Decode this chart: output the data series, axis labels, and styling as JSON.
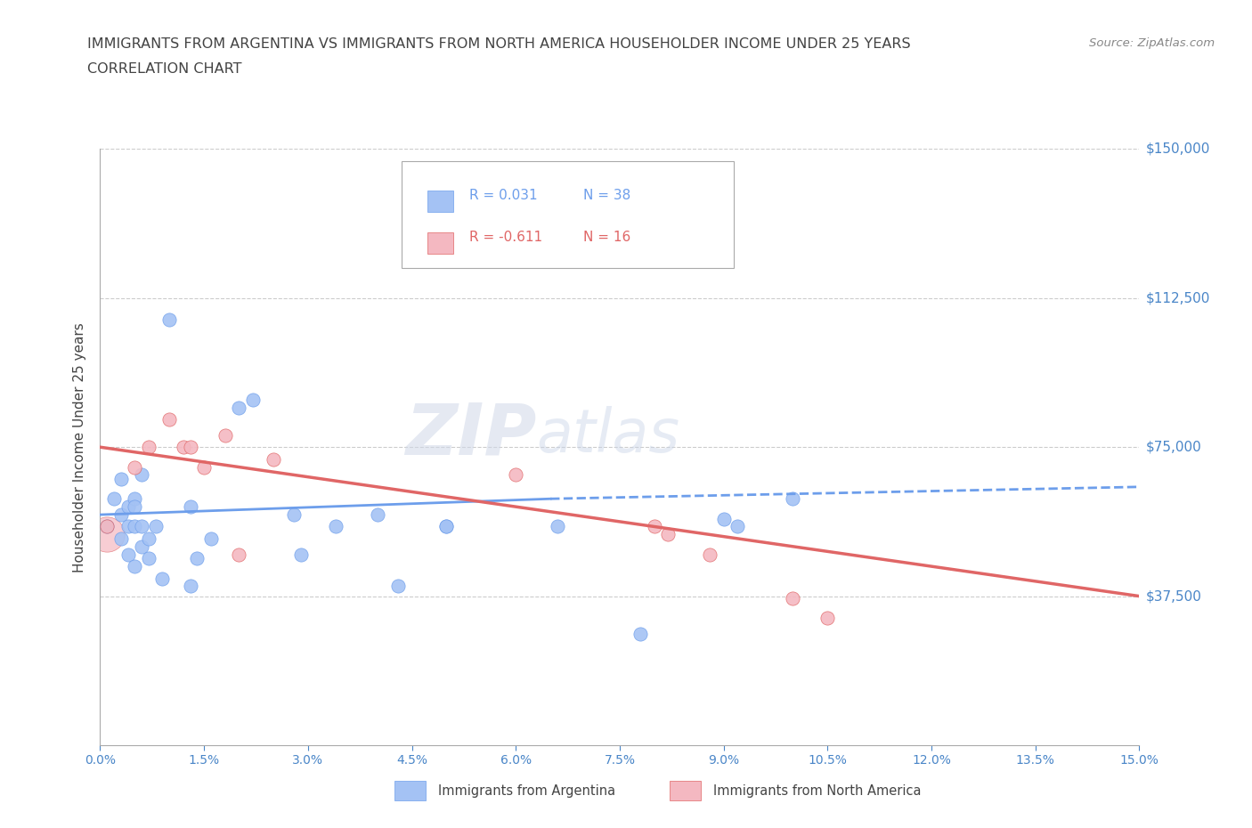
{
  "title_line1": "IMMIGRANTS FROM ARGENTINA VS IMMIGRANTS FROM NORTH AMERICA HOUSEHOLDER INCOME UNDER 25 YEARS",
  "title_line2": "CORRELATION CHART",
  "source_text": "Source: ZipAtlas.com",
  "ylabel": "Householder Income Under 25 years",
  "xlim": [
    0,
    0.15
  ],
  "ylim": [
    0,
    150000
  ],
  "yticks": [
    0,
    37500,
    75000,
    112500,
    150000
  ],
  "ytick_labels": [
    "",
    "$37,500",
    "$75,000",
    "$112,500",
    "$150,000"
  ],
  "watermark_zip": "ZIP",
  "watermark_atlas": "atlas",
  "legend_r1": "R = 0.031",
  "legend_n1": "N = 38",
  "legend_r2": "R = -0.611",
  "legend_n2": "N = 16",
  "color_argentina": "#a4c2f4",
  "color_north_america": "#f4b8c1",
  "color_argentina_dark": "#6d9eeb",
  "color_north_america_dark": "#e06666",
  "color_axis_labels": "#4a86c8",
  "color_title": "#434343",
  "argentina_x": [
    0.001,
    0.002,
    0.003,
    0.003,
    0.003,
    0.004,
    0.004,
    0.004,
    0.005,
    0.005,
    0.005,
    0.005,
    0.006,
    0.006,
    0.006,
    0.007,
    0.007,
    0.008,
    0.009,
    0.01,
    0.013,
    0.013,
    0.014,
    0.016,
    0.02,
    0.022,
    0.028,
    0.029,
    0.034,
    0.04,
    0.043,
    0.05,
    0.05,
    0.066,
    0.078,
    0.09,
    0.092,
    0.1
  ],
  "argentina_y": [
    55000,
    62000,
    67000,
    58000,
    52000,
    55000,
    60000,
    48000,
    55000,
    62000,
    45000,
    60000,
    55000,
    50000,
    68000,
    52000,
    47000,
    55000,
    42000,
    107000,
    60000,
    40000,
    47000,
    52000,
    85000,
    87000,
    58000,
    48000,
    55000,
    58000,
    40000,
    55000,
    55000,
    55000,
    28000,
    57000,
    55000,
    62000
  ],
  "north_america_x": [
    0.001,
    0.005,
    0.007,
    0.01,
    0.012,
    0.013,
    0.015,
    0.018,
    0.02,
    0.025,
    0.06,
    0.08,
    0.082,
    0.088,
    0.1,
    0.105
  ],
  "north_america_y": [
    55000,
    70000,
    75000,
    82000,
    75000,
    75000,
    70000,
    78000,
    48000,
    72000,
    68000,
    55000,
    53000,
    48000,
    37000,
    32000
  ],
  "argentina_trend_x": [
    0.0,
    0.065,
    0.065,
    0.15
  ],
  "argentina_trend_y": [
    58000,
    62000,
    62000,
    65000
  ],
  "argentina_trend_style": [
    "solid",
    "dashed"
  ],
  "argentina_trend_split": 0.065,
  "north_america_trend_x": [
    0.0,
    0.15
  ],
  "north_america_trend_y": [
    75000,
    37500
  ],
  "grid_color": "#cccccc",
  "grid_linestyle": "--",
  "background_color": "#ffffff",
  "legend_label1": "Immigrants from Argentina",
  "legend_label2": "Immigrants from North America"
}
